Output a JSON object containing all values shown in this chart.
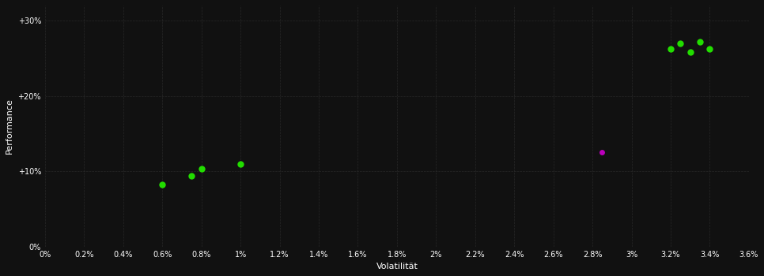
{
  "background_color": "#111111",
  "grid_color": "#2a2a2a",
  "xlabel": "Volatilität",
  "ylabel": "Performance",
  "xlim": [
    0.0,
    0.036
  ],
  "ylim": [
    0.0,
    0.32
  ],
  "green_color": "#22dd00",
  "magenta_color": "#bb00bb",
  "lower_green_pts": [
    [
      0.006,
      0.082
    ],
    [
      0.0075,
      0.094
    ],
    [
      0.008,
      0.103
    ],
    [
      0.01,
      0.11
    ]
  ],
  "upper_green_pts": [
    [
      0.032,
      0.262
    ],
    [
      0.0325,
      0.27
    ],
    [
      0.033,
      0.258
    ],
    [
      0.0335,
      0.272
    ],
    [
      0.034,
      0.262
    ]
  ],
  "magenta_pt": [
    0.0285,
    0.125
  ],
  "marker_size": 6
}
